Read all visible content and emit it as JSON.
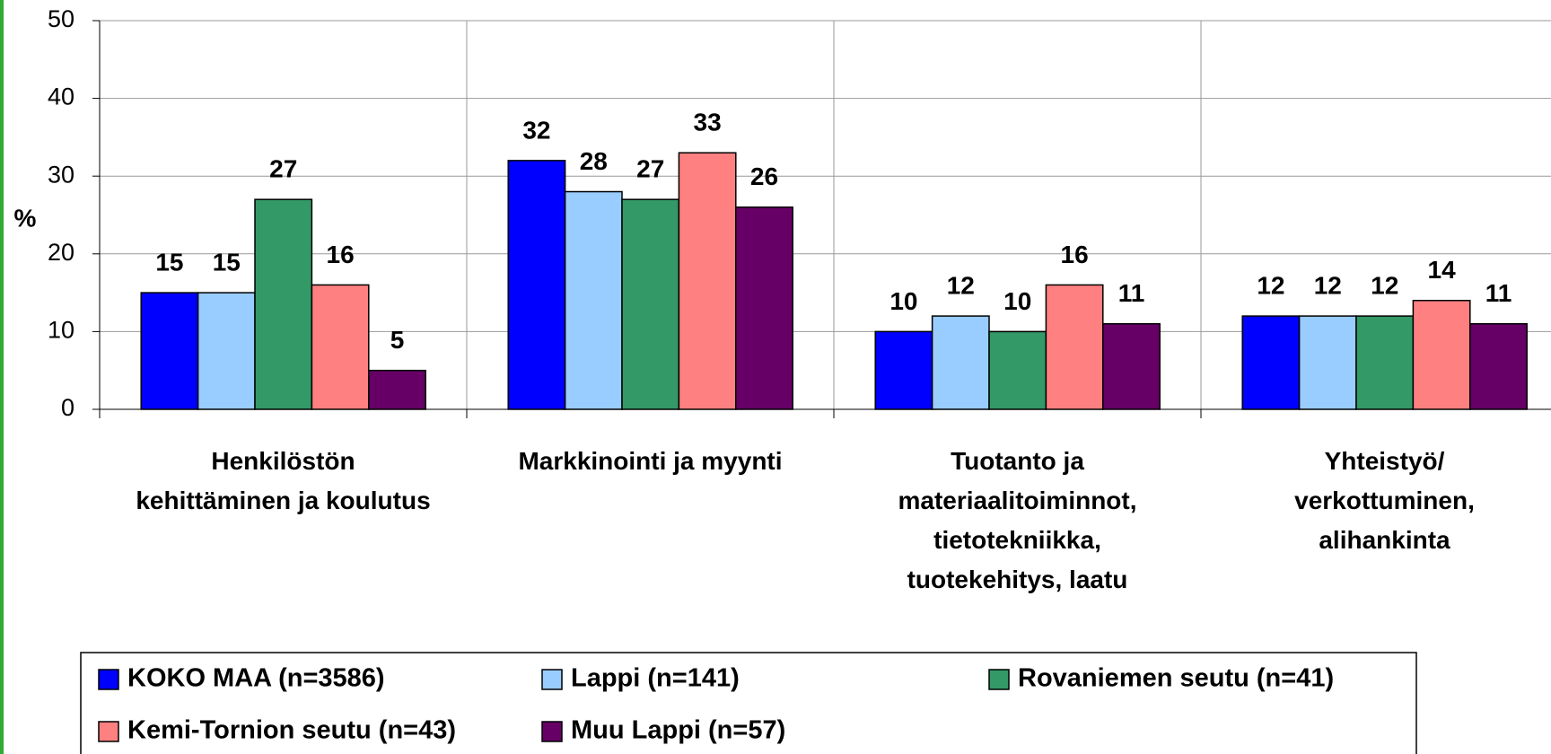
{
  "chart_data": {
    "type": "bar",
    "y_label": "%",
    "categories": [
      "Henkilöstön\nkehittäminen ja koulutus",
      "Markkinointi ja myynti",
      "Tuotanto ja\nmateriaalitoiminnot,\ntietotekniikka,\ntuotekehitys, laatu",
      "Yhteistyö/\nverkottuminen,\nalihankinta"
    ],
    "series": [
      {
        "name": "KOKO MAA (n=3586)",
        "color": "#0000ff",
        "values": [
          15,
          32,
          10,
          12
        ]
      },
      {
        "name": "Lappi (n=141)",
        "color": "#99ccff",
        "values": [
          15,
          28,
          12,
          12
        ]
      },
      {
        "name": "Rovaniemen seutu (n=41)",
        "color": "#339966",
        "values": [
          27,
          27,
          10,
          12
        ]
      },
      {
        "name": "Kemi-Tornion seutu (n=43)",
        "color": "#ff8080",
        "values": [
          16,
          33,
          16,
          14
        ]
      },
      {
        "name": "Muu Lappi (n=57)",
        "color": "#660066",
        "values": [
          5,
          26,
          11,
          11
        ]
      }
    ],
    "ylim": [
      0,
      50
    ],
    "yticks": [
      0,
      10,
      20,
      30,
      40,
      50
    ],
    "grid": true,
    "legend": "bottom"
  }
}
